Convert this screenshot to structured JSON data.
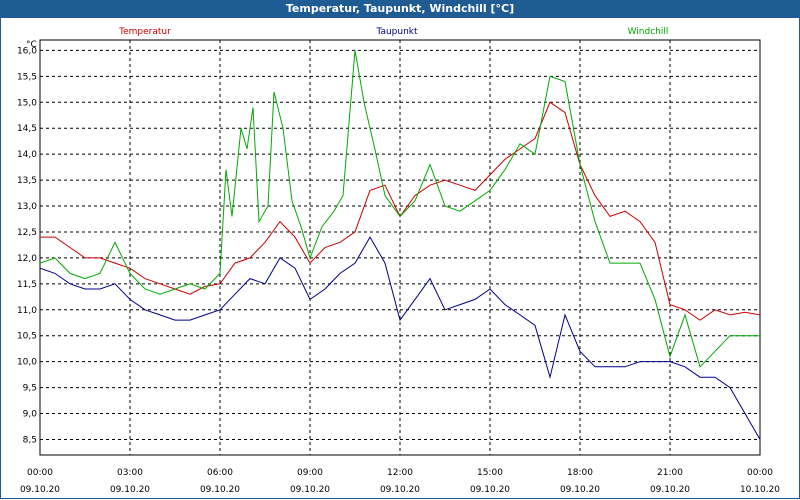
{
  "chart_data": {
    "type": "line",
    "title": "Temperatur, Taupunkt, Windchill [°C]",
    "ylabel": "°C",
    "ylim": [
      8.2,
      16.2
    ],
    "yticks": [
      "16,0",
      "15,5",
      "15,0",
      "14,5",
      "14,0",
      "13,5",
      "13,0",
      "12,5",
      "12,0",
      "11,5",
      "11,0",
      "10,5",
      "10,0",
      "9,5",
      "9,0",
      "8,5"
    ],
    "ytick_values": [
      16,
      15.5,
      15,
      14.5,
      14,
      13.5,
      13,
      12.5,
      12,
      11.5,
      11,
      10.5,
      10,
      9.5,
      9,
      8.5
    ],
    "xlim": [
      0,
      24
    ],
    "xticks": [
      {
        "time": "00:00",
        "date": "09.10.20",
        "v": 0
      },
      {
        "time": "03:00",
        "date": "09.10.20",
        "v": 3
      },
      {
        "time": "06:00",
        "date": "09.10.20",
        "v": 6
      },
      {
        "time": "09:00",
        "date": "09.10.20",
        "v": 9
      },
      {
        "time": "12:00",
        "date": "09.10.20",
        "v": 12
      },
      {
        "time": "15:00",
        "date": "09.10.20",
        "v": 15
      },
      {
        "time": "18:00",
        "date": "09.10.20",
        "v": 18
      },
      {
        "time": "21:00",
        "date": "09.10.20",
        "v": 21
      },
      {
        "time": "00:00",
        "date": "10.10.20",
        "v": 24
      }
    ],
    "grid": true,
    "series": [
      {
        "name": "Temperatur",
        "color": "#cc0000",
        "x": [
          0,
          0.5,
          1,
          1.5,
          2,
          2.5,
          3,
          3.5,
          4,
          4.5,
          5,
          5.5,
          6,
          6.5,
          7,
          7.5,
          8,
          8.5,
          9,
          9.5,
          10,
          10.5,
          11,
          11.5,
          12,
          12.5,
          13,
          13.5,
          14,
          14.5,
          15,
          15.5,
          16,
          16.5,
          17,
          17.5,
          18,
          18.5,
          19,
          19.5,
          20,
          20.5,
          21,
          21.5,
          22,
          22.5,
          23,
          23.5,
          24
        ],
        "values": [
          12.4,
          12.4,
          12.2,
          12.0,
          12.0,
          11.9,
          11.8,
          11.6,
          11.5,
          11.4,
          11.3,
          11.45,
          11.5,
          11.9,
          12.0,
          12.3,
          12.7,
          12.4,
          11.9,
          12.2,
          12.3,
          12.5,
          13.3,
          13.4,
          12.8,
          13.2,
          13.4,
          13.5,
          13.4,
          13.3,
          13.6,
          13.9,
          14.1,
          14.3,
          15.0,
          14.8,
          13.8,
          13.2,
          12.8,
          12.9,
          12.7,
          12.3,
          11.1,
          11.0,
          10.8,
          11.0,
          10.9,
          10.95,
          10.9
        ]
      },
      {
        "name": "Taupunkt",
        "color": "#00008b",
        "x": [
          0,
          0.5,
          1,
          1.5,
          2,
          2.5,
          3,
          3.5,
          4,
          4.5,
          5,
          5.5,
          6,
          6.5,
          7,
          7.5,
          8,
          8.5,
          9,
          9.5,
          10,
          10.5,
          11,
          11.5,
          12,
          12.5,
          13,
          13.5,
          14,
          14.5,
          15,
          15.5,
          16,
          16.5,
          17,
          17.5,
          18,
          18.5,
          19,
          19.5,
          20,
          20.5,
          21,
          21.5,
          22,
          22.5,
          23,
          23.5,
          24
        ],
        "values": [
          11.8,
          11.7,
          11.5,
          11.4,
          11.4,
          11.5,
          11.2,
          11.0,
          10.9,
          10.8,
          10.8,
          10.9,
          11.0,
          11.3,
          11.6,
          11.5,
          12.0,
          11.8,
          11.2,
          11.4,
          11.7,
          11.9,
          12.4,
          11.9,
          10.8,
          11.2,
          11.6,
          11.0,
          11.1,
          11.2,
          11.4,
          11.1,
          10.9,
          10.7,
          9.7,
          10.9,
          10.2,
          9.9,
          9.9,
          9.9,
          10.0,
          10.0,
          10.0,
          9.9,
          9.7,
          9.7,
          9.5,
          9.0,
          8.5
        ]
      },
      {
        "name": "Windchill",
        "color": "#00aa00",
        "x": [
          0,
          0.5,
          1,
          1.5,
          2,
          2.5,
          3,
          3.5,
          4,
          4.5,
          5,
          5.5,
          6,
          6.2,
          6.4,
          6.7,
          6.9,
          7.1,
          7.3,
          7.6,
          7.8,
          8.1,
          8.4,
          8.7,
          9.0,
          9.4,
          9.8,
          10.1,
          10.5,
          10.8,
          11.2,
          11.5,
          12,
          12.5,
          13,
          13.5,
          14,
          14.5,
          15,
          15.5,
          16,
          16.5,
          17,
          17.5,
          18,
          18.5,
          19,
          19.5,
          20,
          20.5,
          21,
          21.5,
          22,
          22.5,
          23,
          23.5,
          24
        ],
        "values": [
          11.9,
          12.0,
          11.7,
          11.6,
          11.7,
          12.3,
          11.7,
          11.4,
          11.3,
          11.4,
          11.5,
          11.4,
          11.7,
          13.7,
          12.8,
          14.5,
          14.1,
          14.9,
          12.7,
          13.0,
          15.2,
          14.5,
          13.1,
          12.6,
          12.0,
          12.6,
          12.9,
          13.2,
          16.0,
          15.0,
          14.0,
          13.2,
          12.8,
          13.1,
          13.8,
          13.0,
          12.9,
          13.1,
          13.3,
          13.7,
          14.2,
          14.0,
          15.5,
          15.4,
          13.8,
          12.7,
          11.9,
          11.9,
          11.9,
          11.2,
          10.1,
          10.9,
          9.9,
          10.2,
          10.5,
          10.5,
          10.5
        ]
      }
    ]
  }
}
